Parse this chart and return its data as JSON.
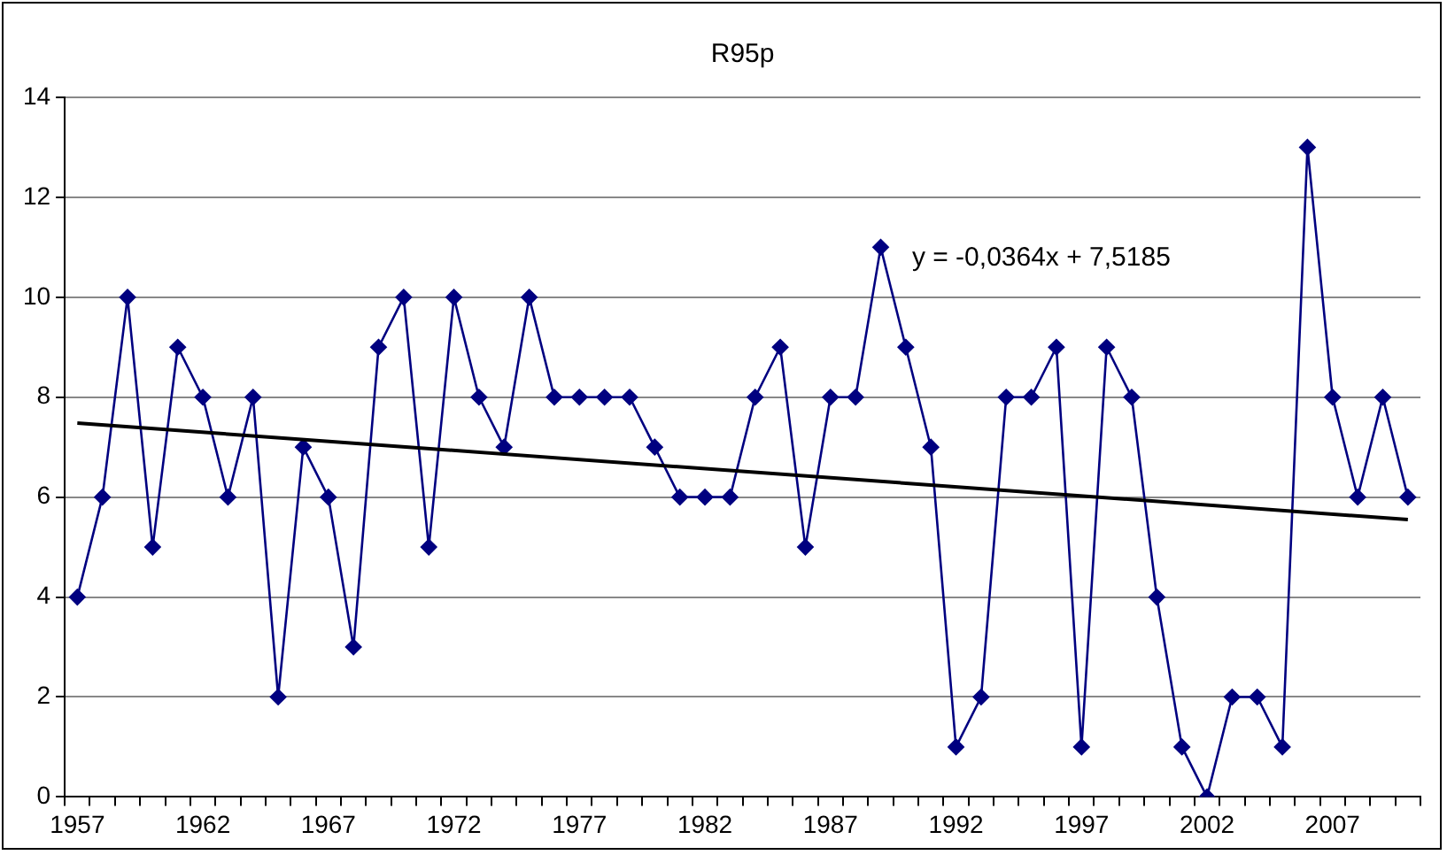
{
  "chart_data": {
    "type": "line",
    "title": "R95p",
    "categories": [
      "1957",
      null,
      null,
      null,
      null,
      "1962",
      null,
      null,
      null,
      null,
      "1967",
      null,
      null,
      null,
      null,
      "1972",
      null,
      null,
      null,
      null,
      "1977",
      null,
      null,
      null,
      null,
      "1982",
      null,
      null,
      null,
      null,
      "1987",
      null,
      null,
      null,
      null,
      "1992",
      null,
      null,
      null,
      null,
      "1997",
      null,
      null,
      null,
      null,
      "2002",
      null,
      null,
      null,
      null,
      "2007",
      null,
      null,
      null
    ],
    "series": [
      {
        "color": "#000080",
        "marker": "diamond",
        "values": [
          4,
          6,
          10,
          5,
          9,
          8,
          6,
          8,
          2,
          7,
          6,
          3,
          9,
          10,
          5,
          10,
          8,
          7,
          10,
          8,
          8,
          8,
          8,
          7,
          6,
          6,
          6,
          8,
          9,
          5,
          8,
          8,
          11,
          9,
          7,
          1,
          2,
          8,
          8,
          9,
          1,
          9,
          8,
          4,
          1,
          0,
          2,
          2,
          1,
          13,
          8,
          6,
          8,
          6
        ]
      },
      {
        "type": "line",
        "color": "#000000",
        "marker": "none",
        "values": [
          7.48,
          null,
          null,
          null,
          null,
          null,
          null,
          null,
          null,
          null,
          null,
          null,
          null,
          null,
          null,
          null,
          null,
          null,
          null,
          null,
          null,
          null,
          null,
          null,
          null,
          null,
          null,
          null,
          null,
          null,
          null,
          null,
          null,
          null,
          null,
          null,
          null,
          null,
          null,
          null,
          null,
          null,
          null,
          null,
          null,
          null,
          null,
          null,
          null,
          null,
          null,
          null,
          null,
          5.55
        ]
      }
    ],
    "ylim": [
      0,
      14
    ],
    "yticks": [
      0,
      2,
      4,
      6,
      8,
      10,
      12,
      14
    ],
    "grid": "y",
    "legend": false,
    "annotations": [
      "y = -0,0364x + 7,5185"
    ]
  }
}
